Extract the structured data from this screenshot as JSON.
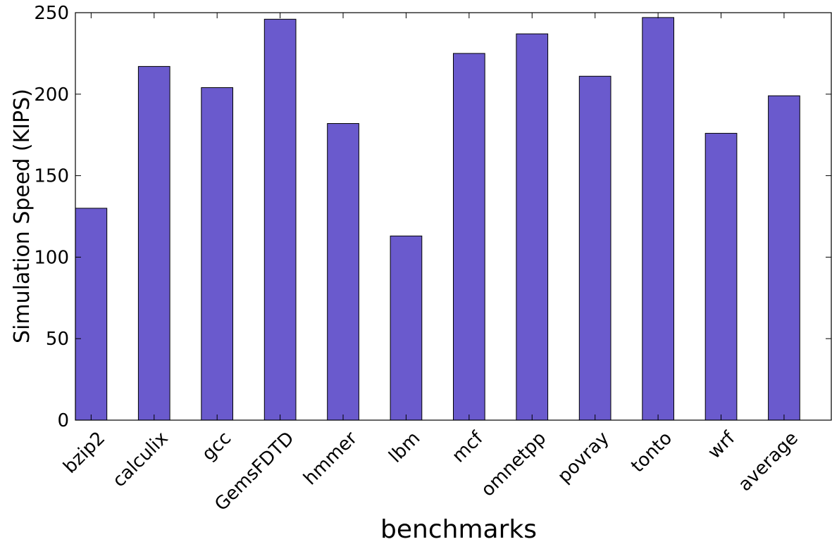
{
  "chart_data": {
    "type": "bar",
    "title": "",
    "xlabel": "benchmarks",
    "ylabel": "Simulation Speed (KIPS)",
    "categories": [
      "bzip2",
      "calculix",
      "gcc",
      "GemsFDTD",
      "hmmer",
      "lbm",
      "mcf",
      "omnetpp",
      "povray",
      "tonto",
      "wrf",
      "average"
    ],
    "values": [
      130,
      217,
      204,
      246,
      182,
      113,
      225,
      237,
      211,
      247,
      176,
      199
    ],
    "ylim": [
      0,
      250
    ],
    "yticks": [
      "0",
      "50",
      "100",
      "150",
      "200",
      "250"
    ],
    "grid": false,
    "legend": "none",
    "bar_color": "#6a5acd"
  }
}
